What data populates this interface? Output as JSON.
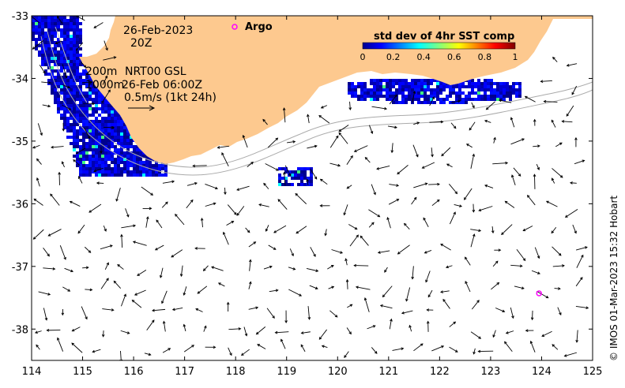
{
  "map": {
    "date_label": "26-Feb-2023",
    "time_label": "20Z",
    "argo_label": "Argo",
    "depth_200": "200m",
    "depth_1000": "1000m",
    "product_label": "NRT00 GSL",
    "product_time": "26-Feb 06:00Z",
    "scale_label": "0.5m/s (1kt 24h)",
    "credit": "© IMOS 01-Mar-2023 15:32 Hobart",
    "land_color": "#fdc98f",
    "argo_color": "#ff00ff",
    "lon_range": [
      114,
      125
    ],
    "lat_range": [
      -38.5,
      -33
    ],
    "lon_ticks": [
      "114",
      "115",
      "116",
      "117",
      "118",
      "119",
      "120",
      "121",
      "122",
      "123",
      "124",
      "125"
    ],
    "lat_ticks": [
      "-33",
      "-34",
      "-35",
      "-36",
      "-37",
      "-38"
    ],
    "argo_float": {
      "lon": 123.95,
      "lat": -37.43
    }
  },
  "colorbar": {
    "title": "std dev of 4hr SST comp",
    "tick_labels": [
      "0",
      "0.2",
      "0.4",
      "0.6",
      "0.8",
      "1"
    ],
    "range": [
      0,
      1
    ],
    "colormap": "jet"
  }
}
